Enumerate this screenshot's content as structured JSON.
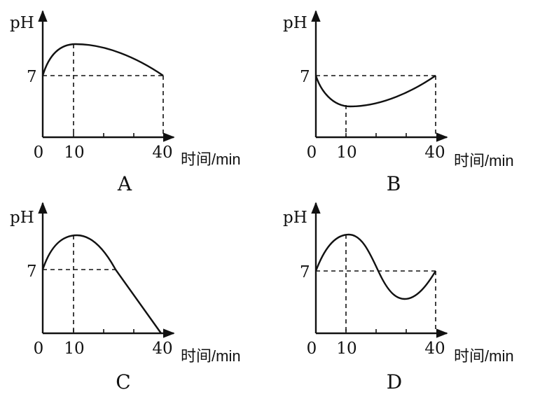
{
  "panels": [
    {
      "id": "A",
      "caption": "A",
      "y_axis_label": "pH",
      "y_ref_label": "7",
      "x_tick_labels": [
        "0",
        "10",
        "40"
      ],
      "x_axis_label": "时间/min",
      "shape": "rises from 7 to a maximum at 10 min, then falls back to 7 at 40 min"
    },
    {
      "id": "B",
      "caption": "B",
      "y_axis_label": "pH",
      "y_ref_label": "7",
      "x_tick_labels": [
        "0",
        "10",
        "40"
      ],
      "x_axis_label": "时间/min",
      "shape": "falls from 7 to a minimum at 10 min, then rises back to 7 at 40 min"
    },
    {
      "id": "C",
      "caption": "C",
      "y_axis_label": "pH",
      "y_ref_label": "7",
      "x_tick_labels": [
        "0",
        "10",
        "40"
      ],
      "x_axis_label": "时间/min",
      "shape": "rises from 7 to a maximum at 10 min, then falls steadily to the axis at 40 min"
    },
    {
      "id": "D",
      "caption": "D",
      "y_axis_label": "pH",
      "y_ref_label": "7",
      "x_tick_labels": [
        "0",
        "10",
        "40"
      ],
      "x_axis_label": "时间/min",
      "shape": "rises from 7 to a maximum at 10 min, drops below 7 to a minimum, then returns to 7 at 40 min"
    }
  ]
}
